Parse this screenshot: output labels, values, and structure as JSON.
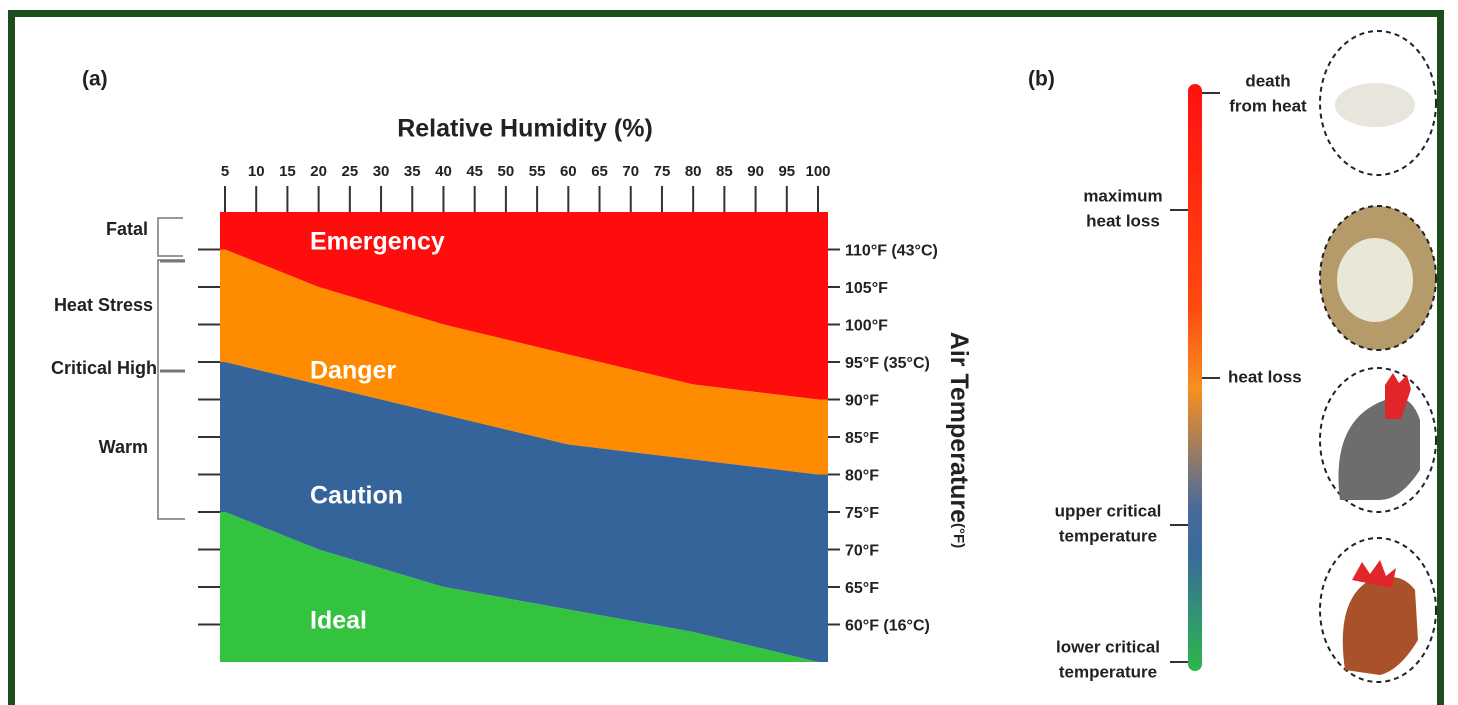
{
  "panel_a": {
    "label": "(a)",
    "chart_data": {
      "type": "zones",
      "title": "Relative Humidity (%)",
      "y_title": "Air Temperature",
      "y_title_unit": "(°F)",
      "xlim": [
        4.2,
        101.6
      ],
      "xticks": [
        5,
        10,
        15,
        20,
        25,
        30,
        35,
        40,
        45,
        50,
        55,
        60,
        65,
        70,
        75,
        80,
        85,
        90,
        95,
        100
      ],
      "ylim": [
        55,
        115
      ],
      "yticks": [
        {
          "value": 60,
          "label": "60°F (16°C)"
        },
        {
          "value": 65,
          "label": "65°F"
        },
        {
          "value": 70,
          "label": "70°F"
        },
        {
          "value": 75,
          "label": "75°F"
        },
        {
          "value": 80,
          "label": "80°F"
        },
        {
          "value": 85,
          "label": "85°F"
        },
        {
          "value": 90,
          "label": "90°F"
        },
        {
          "value": 95,
          "label": "95°F (35°C)"
        },
        {
          "value": 100,
          "label": "100°F"
        },
        {
          "value": 105,
          "label": "105°F"
        },
        {
          "value": 110,
          "label": "110°F (43°C)"
        }
      ],
      "x": [
        5,
        20,
        40,
        60,
        80,
        100
      ],
      "boundaries": [
        {
          "values": [
            110,
            105,
            100,
            96,
            92,
            90
          ]
        },
        {
          "values": [
            95,
            92,
            88,
            84,
            82,
            80
          ]
        },
        {
          "values": [
            75,
            70,
            65,
            62,
            59,
            55
          ]
        }
      ],
      "zones": [
        {
          "name": "Emergency",
          "color": "#ff0d0d"
        },
        {
          "name": "Danger",
          "color": "#ff8c00"
        },
        {
          "name": "Caution",
          "color": "#35649a"
        },
        {
          "name": "Ideal",
          "color": "#34c33e"
        }
      ],
      "brackets": [
        "Fatal",
        "Heat Stress",
        "Critical High",
        "Warm"
      ]
    }
  },
  "panel_b": {
    "label": "(b)",
    "levels": [
      {
        "text": [
          "death",
          "from heat"
        ]
      },
      {
        "text": [
          "maximum",
          "heat loss"
        ]
      },
      {
        "text": [
          "heat loss"
        ]
      },
      {
        "text": [
          "upper critical",
          "temperature"
        ]
      },
      {
        "text": [
          "lower critical",
          "temperature"
        ]
      }
    ]
  }
}
